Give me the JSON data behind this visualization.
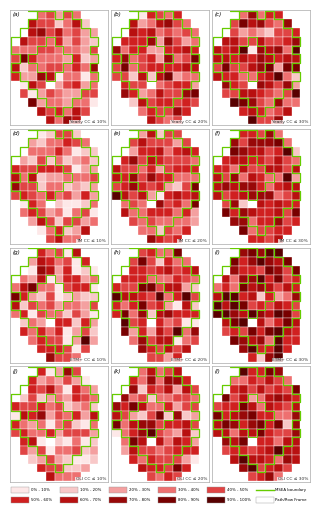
{
  "subplot_labels": [
    [
      "(a)",
      "(b)",
      "(c)"
    ],
    [
      "(d)",
      "(e)",
      "(f)"
    ],
    [
      "(g)",
      "(h)",
      "(i)"
    ],
    [
      "(j)",
      "(k)",
      "(l)"
    ]
  ],
  "subplot_titles": [
    [
      "Yearly CC ≤ 10%",
      "Yearly CC ≤ 20%",
      "Yearly CC ≤ 30%"
    ],
    [
      "TM CC ≤ 10%",
      "TM CC ≤ 20%",
      "TM CC ≤ 30%"
    ],
    [
      "ETM+ CC ≤ 10%",
      "ETM+ CC ≤ 20%",
      "ETM+ CC ≤ 30%"
    ],
    [
      "OLI CC ≤ 10%",
      "OLI CC ≤ 20%",
      "OLI CC ≤ 30%"
    ]
  ],
  "legend_labels_row1": [
    "0% - 10%",
    "10% - 20%",
    "20% - 30%",
    "30% - 40%",
    "40% - 50%",
    "MSEA boundary"
  ],
  "legend_labels_row2": [
    "50% - 60%",
    "60% - 70%",
    "70% - 80%",
    "80% - 90%",
    "90% - 100%",
    "Path/Row Frame"
  ],
  "legend_colors_row1": [
    "#fde8e8",
    "#f8c8c8",
    "#f4a0a0",
    "#ee7070",
    "#e04444"
  ],
  "legend_colors_row2": [
    "#d02020",
    "#b81010",
    "#980808",
    "#780000",
    "#580000"
  ],
  "msea_boundary_color": "#66cc00",
  "path_row_color": "#ffffff",
  "figure_bg": "#ffffff",
  "panel_bg": "#ffffff"
}
